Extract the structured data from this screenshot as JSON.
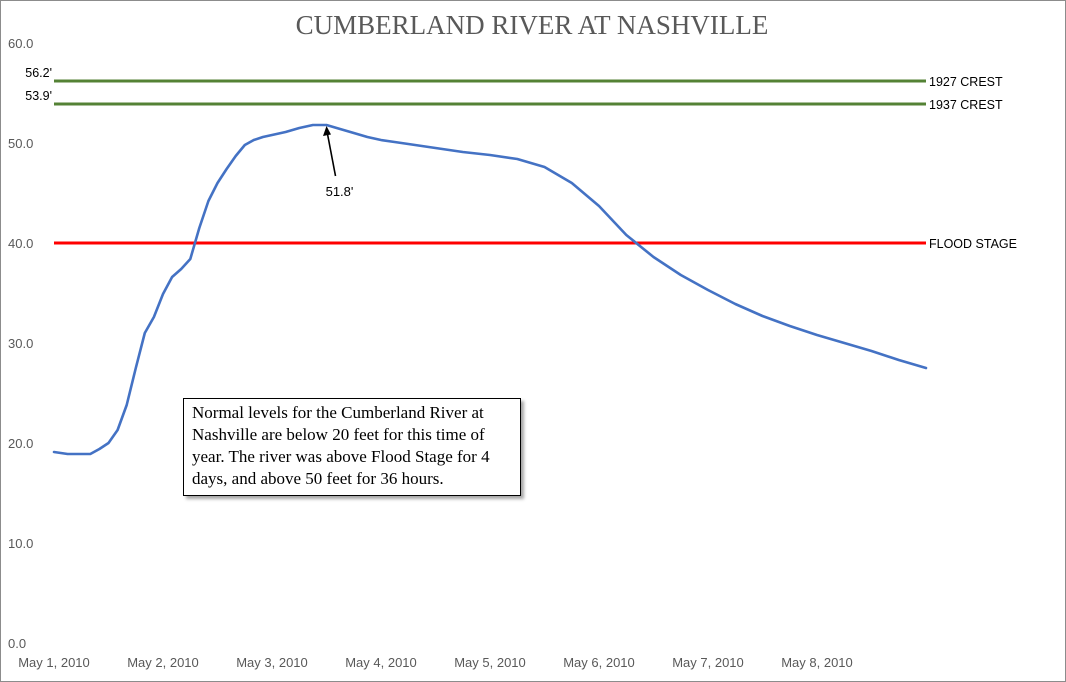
{
  "chart_data": {
    "type": "line",
    "title": "CUMBERLAND RIVER AT NASHVILLE",
    "xlabel": "",
    "ylabel": "",
    "ylim": [
      0,
      60
    ],
    "yticks": [
      "0.0",
      "10.0",
      "20.0",
      "30.0",
      "40.0",
      "50.0",
      "60.0"
    ],
    "xticks": [
      "May 1, 2010",
      "May 2, 2010",
      "May 3, 2010",
      "May 4, 2010",
      "May 5, 2010",
      "May 6, 2010",
      "May 7, 2010",
      "May 8, 2010"
    ],
    "grid": false,
    "series": [
      {
        "color": "#4472c4",
        "x": [
          "May 1, 2010 00:00",
          "May 1, 2010 03:00",
          "May 1, 2010 06:00",
          "May 1, 2010 08:00",
          "May 1, 2010 10:00",
          "May 1, 2010 12:00",
          "May 1, 2010 14:00",
          "May 1, 2010 16:00",
          "May 1, 2010 18:00",
          "May 1, 2010 20:00",
          "May 1, 2010 22:00",
          "May 2, 2010 00:00",
          "May 2, 2010 02:00",
          "May 2, 2010 04:00",
          "May 2, 2010 06:00",
          "May 2, 2010 08:00",
          "May 2, 2010 10:00",
          "May 2, 2010 12:00",
          "May 2, 2010 14:00",
          "May 2, 2010 16:00",
          "May 2, 2010 18:00",
          "May 2, 2010 20:00",
          "May 2, 2010 22:00",
          "May 3, 2010 00:00",
          "May 3, 2010 03:00",
          "May 3, 2010 06:00",
          "May 3, 2010 09:00",
          "May 3, 2010 12:00",
          "May 3, 2010 15:00",
          "May 3, 2010 18:00",
          "May 3, 2010 21:00",
          "May 4, 2010 00:00",
          "May 4, 2010 03:00",
          "May 4, 2010 06:00",
          "May 4, 2010 09:00",
          "May 4, 2010 12:00",
          "May 4, 2010 18:00",
          "May 5, 2010 00:00",
          "May 5, 2010 06:00",
          "May 5, 2010 12:00",
          "May 5, 2010 18:00",
          "May 6, 2010 00:00",
          "May 6, 2010 06:00",
          "May 6, 2010 12:00",
          "May 6, 2010 18:00",
          "May 7, 2010 00:00",
          "May 7, 2010 06:00",
          "May 7, 2010 12:00",
          "May 7, 2010 18:00",
          "May 8, 2010 00:00",
          "May 8, 2010 06:00",
          "May 8, 2010 12:00",
          "May 8, 2010 18:00",
          "May 9, 2010 00:00"
        ],
        "values": [
          19.1,
          18.9,
          18.9,
          18.9,
          19.4,
          20.0,
          21.3,
          23.8,
          27.5,
          31.0,
          32.6,
          34.9,
          36.6,
          37.4,
          38.4,
          41.5,
          44.2,
          46.0,
          47.4,
          48.7,
          49.8,
          50.3,
          50.6,
          50.8,
          51.1,
          51.5,
          51.8,
          51.8,
          51.4,
          51.0,
          50.6,
          50.3,
          50.1,
          49.9,
          49.7,
          49.5,
          49.1,
          48.8,
          48.4,
          47.6,
          46.0,
          43.7,
          40.8,
          38.6,
          36.8,
          35.3,
          33.9,
          32.7,
          31.7,
          30.8,
          30.0,
          29.2,
          28.3,
          27.5
        ]
      }
    ],
    "reference_lines": [
      {
        "value": 56.2,
        "left_label": "56.2'",
        "right_label": "1927 CREST",
        "color": "#548235"
      },
      {
        "value": 53.9,
        "left_label": "53.9'",
        "right_label": "1937 CREST",
        "color": "#548235"
      },
      {
        "value": 40.0,
        "left_label": "",
        "right_label": "FLOOD STAGE",
        "color": "#ff0000"
      }
    ],
    "peak_annotation": {
      "x": "May 3, 2010 12:00",
      "value": 51.8,
      "label": "51.8'"
    },
    "note": "Normal levels for the Cumberland River at Nashville are below 20 feet for this time of year. The river was above Flood Stage for 4 days, and above 50 feet for 36 hours."
  }
}
